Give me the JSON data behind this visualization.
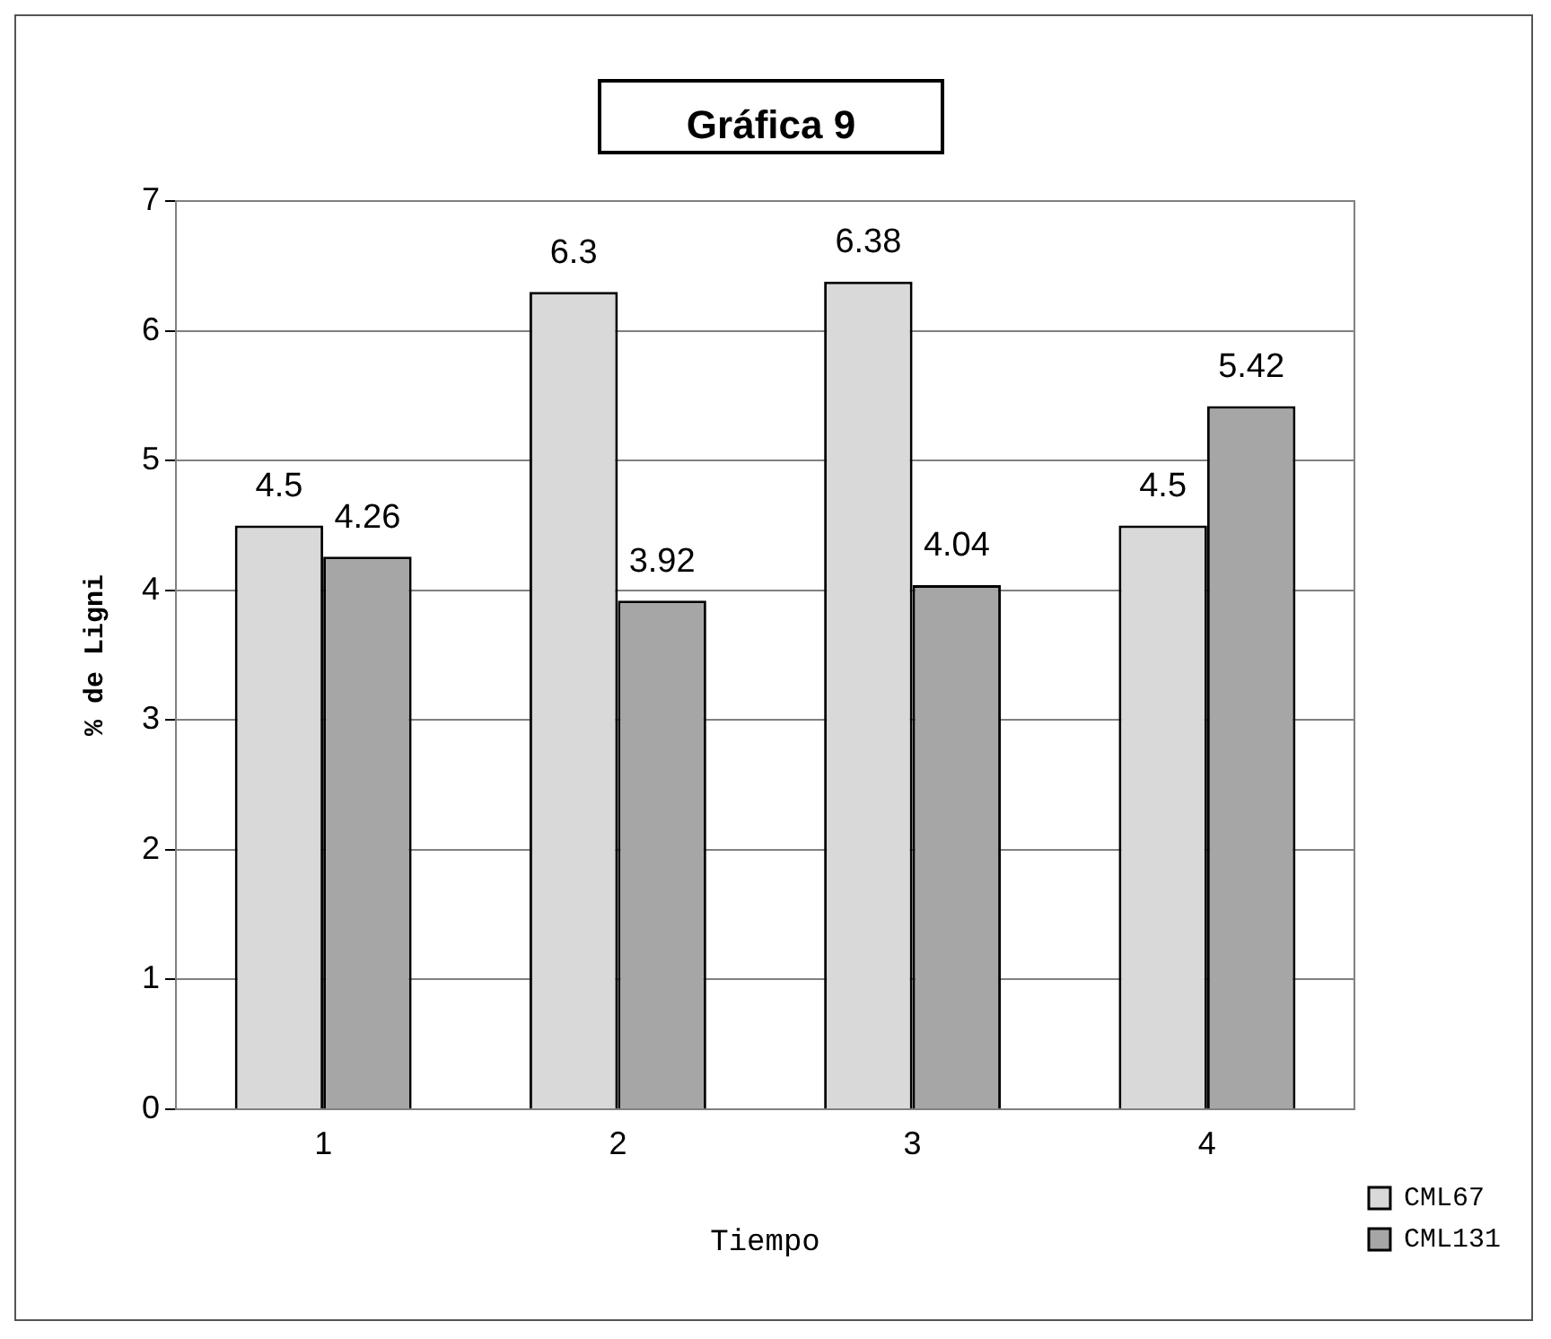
{
  "chart_data": {
    "type": "bar",
    "title": "Gráfica 9",
    "xlabel": "Tiempo",
    "ylabel": "% de Ligni",
    "categories": [
      "1",
      "2",
      "3",
      "4"
    ],
    "series": [
      {
        "name": "CML67",
        "color": "#d9d9d9",
        "values": [
          4.5,
          6.3,
          6.38,
          4.5
        ]
      },
      {
        "name": "CML131",
        "color": "#a6a6a6",
        "values": [
          4.26,
          3.92,
          4.04,
          5.42
        ]
      }
    ],
    "ylim": [
      0,
      7
    ],
    "yticks": [
      0,
      1,
      2,
      3,
      4,
      5,
      6,
      7
    ],
    "grid": "y",
    "legend": "bottom right",
    "data_labels": true
  }
}
